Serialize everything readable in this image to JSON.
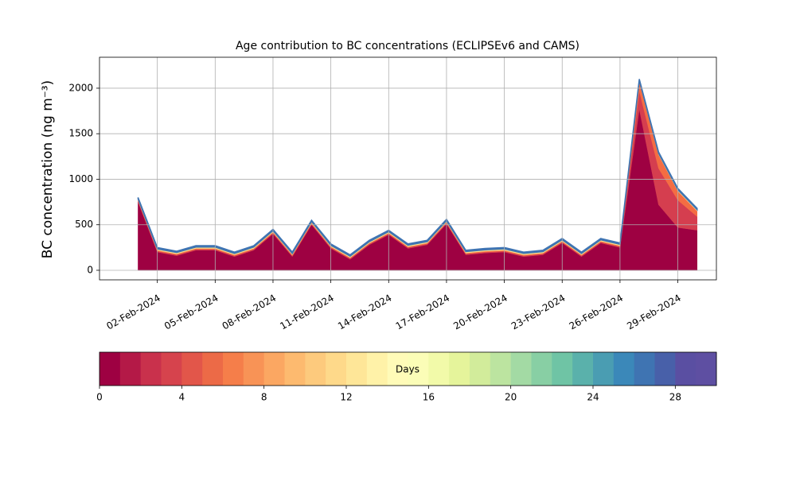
{
  "chart_data": {
    "type": "stacked_area",
    "title": "Age contribution to BC concentrations (ECLIPSEv6 and CAMS)",
    "y_label": "BC concentration (ng m⁻³)",
    "x": [
      "2024-02-01",
      "2024-02-02",
      "2024-02-03",
      "2024-02-04",
      "2024-02-05",
      "2024-02-06",
      "2024-02-07",
      "2024-02-08",
      "2024-02-09",
      "2024-02-10",
      "2024-02-11",
      "2024-02-12",
      "2024-02-13",
      "2024-02-14",
      "2024-02-15",
      "2024-02-16",
      "2024-02-17",
      "2024-02-18",
      "2024-02-19",
      "2024-02-20",
      "2024-02-21",
      "2024-02-22",
      "2024-02-23",
      "2024-02-24",
      "2024-02-25",
      "2024-02-26",
      "2024-02-27",
      "2024-02-28",
      "2024-02-29",
      "2024-03-01"
    ],
    "series": [
      {
        "color": "#9e0142",
        "values": [
          750,
          200,
          160,
          220,
          220,
          150,
          220,
          400,
          150,
          500,
          240,
          120,
          280,
          390,
          240,
          280,
          510,
          170,
          190,
          200,
          150,
          170,
          300,
          150,
          300,
          250,
          1770,
          720,
          470,
          440
        ]
      },
      {
        "color": "#d53e4f",
        "values": [
          10,
          10,
          10,
          10,
          10,
          10,
          10,
          10,
          10,
          10,
          10,
          10,
          10,
          10,
          10,
          10,
          10,
          10,
          10,
          10,
          10,
          10,
          10,
          10,
          10,
          10,
          200,
          400,
          300,
          150
        ]
      },
      {
        "color": "#f46d43",
        "values": [
          10,
          10,
          10,
          10,
          10,
          10,
          10,
          10,
          10,
          10,
          10,
          10,
          10,
          10,
          10,
          10,
          10,
          10,
          10,
          10,
          10,
          10,
          10,
          10,
          10,
          10,
          100,
          150,
          100,
          60
        ]
      },
      {
        "color": "#fee08b",
        "values": [
          15,
          15,
          15,
          15,
          15,
          15,
          15,
          15,
          15,
          15,
          15,
          15,
          15,
          15,
          15,
          15,
          15,
          15,
          15,
          15,
          15,
          15,
          15,
          15,
          15,
          15,
          15,
          15,
          15,
          15
        ]
      },
      {
        "color": "#3f74b2",
        "values": [
          15,
          15,
          15,
          15,
          15,
          15,
          15,
          15,
          15,
          15,
          15,
          15,
          15,
          15,
          15,
          15,
          15,
          15,
          15,
          15,
          15,
          15,
          15,
          15,
          15,
          15,
          15,
          15,
          15,
          15
        ]
      }
    ],
    "xlim": [
      "2024-01-30",
      "2024-03-02"
    ],
    "xticks": [
      {
        "value": "2024-02-02",
        "label": "02-Feb-2024"
      },
      {
        "value": "2024-02-05",
        "label": "05-Feb-2024"
      },
      {
        "value": "2024-02-08",
        "label": "08-Feb-2024"
      },
      {
        "value": "2024-02-11",
        "label": "11-Feb-2024"
      },
      {
        "value": "2024-02-14",
        "label": "14-Feb-2024"
      },
      {
        "value": "2024-02-17",
        "label": "17-Feb-2024"
      },
      {
        "value": "2024-02-20",
        "label": "20-Feb-2024"
      },
      {
        "value": "2024-02-23",
        "label": "23-Feb-2024"
      },
      {
        "value": "2024-02-26",
        "label": "26-Feb-2024"
      },
      {
        "value": "2024-02-29",
        "label": "29-Feb-2024"
      }
    ],
    "ylim": [
      -105,
      2340
    ],
    "yticks": [
      0,
      500,
      1000,
      1500,
      2000
    ],
    "grid": true,
    "colorbar": {
      "label": "Days",
      "lim": [
        0,
        30
      ],
      "ticks": [
        0,
        4,
        8,
        12,
        16,
        20,
        24,
        28
      ],
      "colors": [
        "#9e0142",
        "#b41947",
        "#c9314c",
        "#d6434d",
        "#e2564a",
        "#ec6a47",
        "#f57e4a",
        "#f89356",
        "#fba762",
        "#fdba6f",
        "#fdca7d",
        "#fed98a",
        "#fee698",
        "#fff2a8",
        "#fffbb8",
        "#fbfdb7",
        "#f2faa9",
        "#e5f49b",
        "#d2ec9b",
        "#bce4a0",
        "#a3daa4",
        "#88cfa4",
        "#6fc4a5",
        "#5ab1ab",
        "#4a9db2",
        "#3b88b9",
        "#3f74b2",
        "#4860a9",
        "#5a4fa2",
        "#5e4fa2"
      ]
    }
  }
}
